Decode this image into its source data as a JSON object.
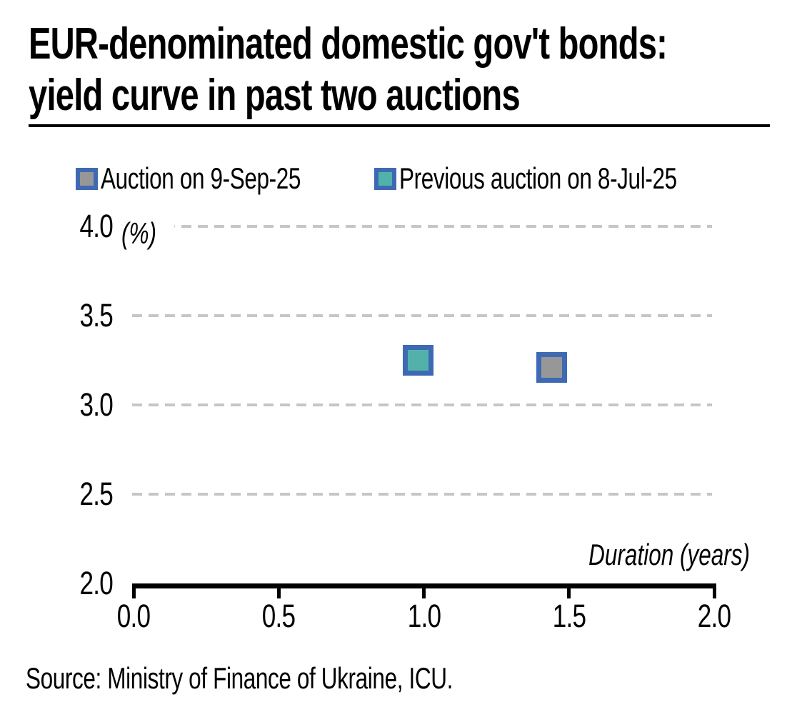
{
  "header": {
    "title_lines": [
      "EUR-denominated domestic gov't bonds:",
      "yield curve in past two auctions"
    ]
  },
  "source": {
    "text": "Source: Ministry of Finance of Ukraine, ICU."
  },
  "chart_data": {
    "type": "scatter",
    "title": "EUR-denominated domestic gov't bonds: yield curve in past two auctions",
    "unit_label": "(%)",
    "xlabel": "Duration (years)",
    "xlim": [
      0.0,
      2.0
    ],
    "ylim": [
      2.0,
      4.0
    ],
    "xtick_labels": [
      "0.0",
      "0.5",
      "1.0",
      "1.5",
      "2.0"
    ],
    "xtick_values": [
      0.0,
      0.5,
      1.0,
      1.5,
      2.0
    ],
    "ytick_labels": [
      "2.0",
      "2.5",
      "3.0",
      "3.5",
      "4.0"
    ],
    "ytick_values": [
      2.0,
      2.5,
      3.0,
      3.5,
      4.0
    ],
    "grid": "horizontal-dashed",
    "legend_position": "top-left",
    "series": [
      {
        "name": "Auction on 9-Sep-25",
        "marker": "square",
        "fill": "#979797",
        "border": "#3e6ab3",
        "points": [
          {
            "x": 1.44,
            "y": 3.21
          }
        ]
      },
      {
        "name": "Previous auction on 8-Jul-25",
        "marker": "square",
        "fill": "#52b2aa",
        "border": "#3e6ab3",
        "points": [
          {
            "x": 0.98,
            "y": 3.25
          }
        ]
      }
    ],
    "colors": {
      "gridline": "#c6c6c6",
      "axis": "#000000",
      "marker_border": "#3e6ab3"
    }
  }
}
